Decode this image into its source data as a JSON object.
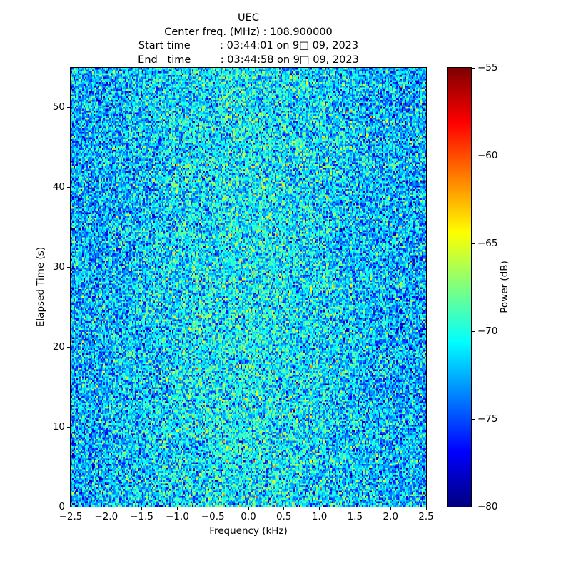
{
  "figure": {
    "background": "#ffffff",
    "text_color": "#000000"
  },
  "chart_data": {
    "type": "heatmap",
    "title": "UEC",
    "title_block": [
      "UEC",
      "Center freq. (MHz) : 108.900000",
      "Start time         : 03:44:01 on 9□ 09, 2023",
      "End   time         : 03:44:58 on 9□ 09, 2023"
    ],
    "center_freq_mhz": "108.900000",
    "start_time": "03:44:01 on 9□ 09, 2023",
    "end_time": "03:44:58 on 9□ 09, 2023",
    "xlabel": "Frequency (kHz)",
    "ylabel": "Elapsed Time (s)",
    "xlim": [
      -2.5,
      2.5
    ],
    "ylim": [
      0,
      55
    ],
    "grid": false,
    "x_ticks": [
      {
        "v": -2.5,
        "label": "−2.5"
      },
      {
        "v": -2.0,
        "label": "−2.0"
      },
      {
        "v": -1.5,
        "label": "−1.5"
      },
      {
        "v": -1.0,
        "label": "−1.0"
      },
      {
        "v": -0.5,
        "label": "−0.5"
      },
      {
        "v": 0.0,
        "label": "0.0"
      },
      {
        "v": 0.5,
        "label": "0.5"
      },
      {
        "v": 1.0,
        "label": "1.0"
      },
      {
        "v": 1.5,
        "label": "1.5"
      },
      {
        "v": 2.0,
        "label": "2.0"
      },
      {
        "v": 2.5,
        "label": "2.5"
      }
    ],
    "y_ticks": [
      {
        "v": 0,
        "label": "0"
      },
      {
        "v": 10,
        "label": "10"
      },
      {
        "v": 20,
        "label": "20"
      },
      {
        "v": 30,
        "label": "30"
      },
      {
        "v": 40,
        "label": "40"
      },
      {
        "v": 50,
        "label": "50"
      }
    ],
    "colorbar": {
      "label": "Power (dB)",
      "colormap": "jet",
      "clim": [
        -80,
        -55
      ],
      "ticks": [
        {
          "v": -55,
          "label": "−55"
        },
        {
          "v": -60,
          "label": "−60"
        },
        {
          "v": -65,
          "label": "−65"
        },
        {
          "v": -70,
          "label": "−70"
        },
        {
          "v": -75,
          "label": "−75"
        },
        {
          "v": -80,
          "label": "−80"
        }
      ]
    },
    "noise_model": {
      "description": "broadband random noise; power slightly elevated near 0 kHz",
      "grid_cols": 249,
      "grid_rows": 246,
      "mean_db": -73.0,
      "std_db": 3.0,
      "center_boost_db": 2.2,
      "center_sigma_khz": 1.3,
      "seed": 20230909
    }
  }
}
